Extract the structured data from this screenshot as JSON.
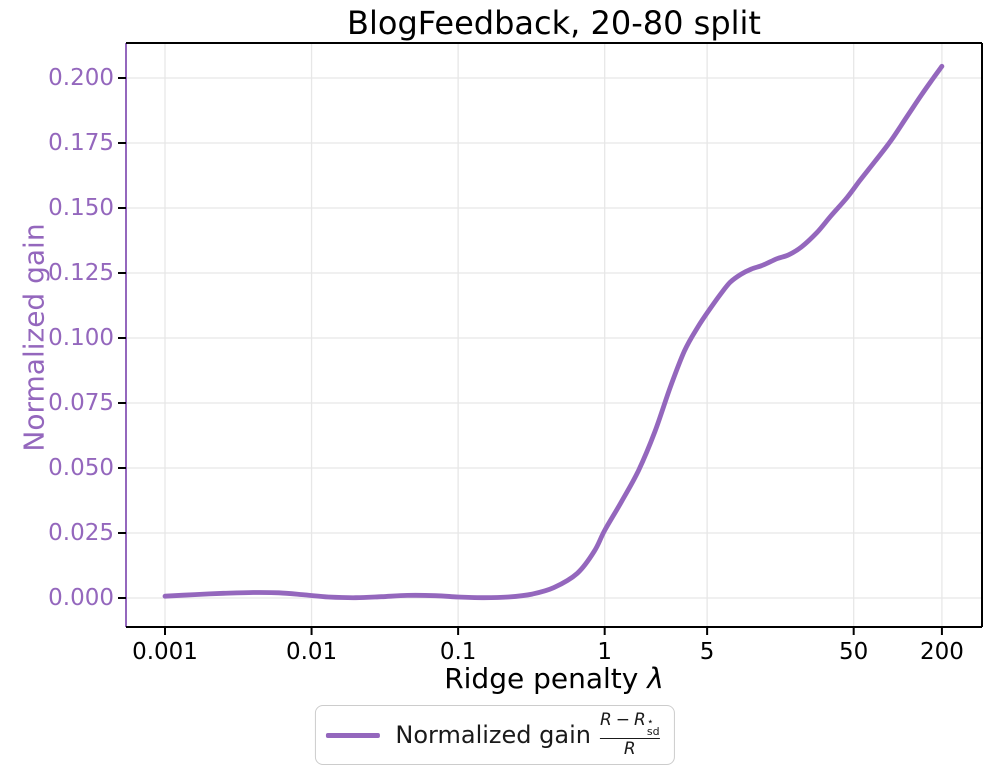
{
  "figure": {
    "title": "BlogFeedback, 20-80 split",
    "xlabel_prefix": "Ridge penalty ",
    "xlabel_symbol": "λ",
    "ylabel": "Normalized gain"
  },
  "legend": {
    "label": "Normalized gain",
    "fraction": {
      "num_r1": "R",
      "minus": "−",
      "num_r2": "R",
      "star": "⋆",
      "subscript": "sd",
      "den": "R"
    }
  },
  "colors": {
    "line": "#9467bd",
    "y_text": "#9467bd",
    "left_spine": "#9467bd",
    "spine": "#000000",
    "tick": "#000000",
    "x_text": "#000000",
    "grid": "#e7e7e7",
    "legend_border": "#cccccc"
  },
  "chart_data": {
    "type": "line",
    "title": "BlogFeedback, 20-80 split",
    "xlabel": "Ridge penalty λ",
    "ylabel": "Normalized gain",
    "x_scale": "log",
    "grid": true,
    "legend_position": "below chart, centered",
    "x_ticks": [
      0.001,
      0.01,
      0.1,
      1,
      5,
      50,
      200
    ],
    "x_tick_labels": [
      "0.001",
      "0.01",
      "0.1",
      "1",
      "5",
      "50",
      "200"
    ],
    "y_ticks": [
      0.0,
      0.025,
      0.05,
      0.075,
      0.1,
      0.125,
      0.15,
      0.175,
      0.2
    ],
    "y_tick_labels": [
      "0.000",
      "0.025",
      "0.050",
      "0.075",
      "0.100",
      "0.125",
      "0.150",
      "0.175",
      "0.200"
    ],
    "xlim": [
      0.00054,
      375
    ],
    "ylim": [
      -0.0111,
      0.2135
    ],
    "series": [
      {
        "name": "Normalized gain (R − R⋆sd)/R",
        "color": "#9467bd",
        "points": [
          [
            0.001,
            0.0007
          ],
          [
            0.0016,
            0.0013
          ],
          [
            0.0025,
            0.0018
          ],
          [
            0.004,
            0.0021
          ],
          [
            0.006,
            0.002
          ],
          [
            0.009,
            0.0012
          ],
          [
            0.013,
            0.0004
          ],
          [
            0.02,
            0.0001
          ],
          [
            0.03,
            0.0005
          ],
          [
            0.045,
            0.001
          ],
          [
            0.07,
            0.0009
          ],
          [
            0.1,
            0.0004
          ],
          [
            0.15,
            0.0001
          ],
          [
            0.22,
            0.0004
          ],
          [
            0.32,
            0.0015
          ],
          [
            0.45,
            0.004
          ],
          [
            0.65,
            0.0095
          ],
          [
            0.85,
            0.018
          ],
          [
            1,
            0.026
          ],
          [
            1.3,
            0.037
          ],
          [
            1.7,
            0.049
          ],
          [
            2.2,
            0.064
          ],
          [
            2.8,
            0.081
          ],
          [
            3.5,
            0.095
          ],
          [
            4.3,
            0.104
          ],
          [
            5.2,
            0.111
          ],
          [
            6.2,
            0.117
          ],
          [
            7.2,
            0.1215
          ],
          [
            8.5,
            0.1245
          ],
          [
            10,
            0.1265
          ],
          [
            12,
            0.128
          ],
          [
            15,
            0.1305
          ],
          [
            18,
            0.132
          ],
          [
            22,
            0.135
          ],
          [
            28,
            0.1405
          ],
          [
            35,
            0.147
          ],
          [
            45,
            0.154
          ],
          [
            55,
            0.1605
          ],
          [
            70,
            0.168
          ],
          [
            90,
            0.176
          ],
          [
            115,
            0.185
          ],
          [
            145,
            0.1935
          ],
          [
            175,
            0.2
          ],
          [
            200,
            0.2045
          ]
        ]
      }
    ]
  }
}
